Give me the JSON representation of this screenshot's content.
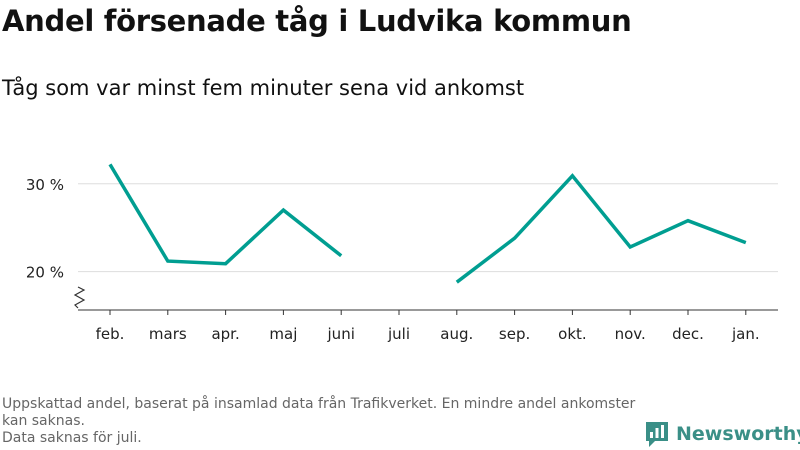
{
  "title": "Andel försenade tåg i Ludvika kommun",
  "subtitle": "Tåg som var minst fem minuter sena vid ankomst",
  "note_lines": [
    "Uppskattad andel, baserat på insamlad data från Trafikverket. En mindre andel ankomster kan saknas.",
    "Data saknas för juli."
  ],
  "brand": {
    "name": "Newsworthy",
    "color": "#3a8f87"
  },
  "chart_data": {
    "type": "line",
    "categories": [
      "feb.",
      "mars",
      "apr.",
      "maj",
      "juni",
      "juli",
      "aug.",
      "sep.",
      "okt.",
      "nov.",
      "dec.",
      "jan."
    ],
    "series": [
      {
        "values": [
          32.2,
          21.2,
          20.9,
          27.0,
          21.8,
          null,
          18.8,
          23.8,
          30.9,
          22.8,
          25.8,
          23.3
        ],
        "color": "#009e91"
      }
    ],
    "yticks": [
      20,
      30
    ],
    "ytick_labels": [
      "20 %",
      "30 %"
    ],
    "ylim": [
      16.2,
      33.5
    ],
    "grid": true,
    "axis_break": true,
    "legend": "none"
  }
}
